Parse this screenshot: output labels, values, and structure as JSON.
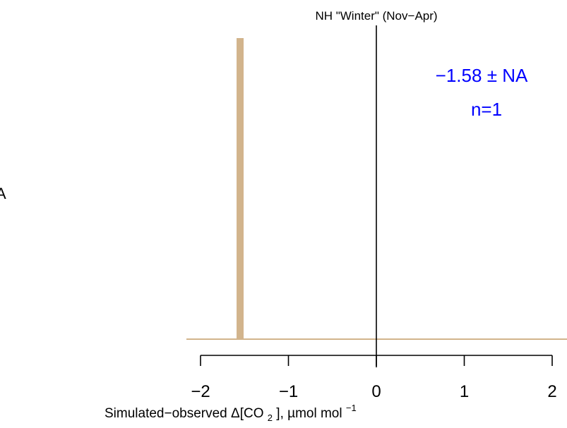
{
  "chart_data": {
    "type": "bar",
    "title": "NH \"Winter\" (Nov−Apr)",
    "xlabel": {
      "prefix": "Simulated−observed Δ[CO",
      "sub": "2",
      "middle": "], µmol mol",
      "sup": "−1"
    },
    "ylabel": "",
    "edge_fragment": "A",
    "xlim": [
      -2,
      2
    ],
    "ylim": [
      0,
      1
    ],
    "x_ticks": [
      -2,
      -1,
      0,
      1,
      2
    ],
    "x_tick_labels": [
      "−2",
      "−1",
      "0",
      "1",
      "2"
    ],
    "bars": [
      {
        "x": -1.55,
        "width": 0.08,
        "value": 1.0
      }
    ],
    "reference_line_x": 0,
    "annotation": {
      "mean_text": "−1.58",
      "pm": "±",
      "sd_text": "NA",
      "n_text": "n=1"
    },
    "colors": {
      "bar": "#d2b48c",
      "baseline": "#d2b48c",
      "annotation": "#0000ff",
      "reference": "#000000"
    }
  }
}
